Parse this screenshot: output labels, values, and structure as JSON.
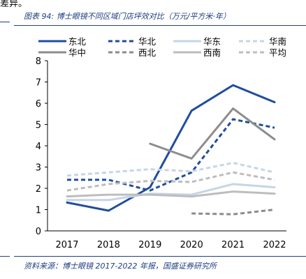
{
  "top_note": "差异。",
  "figure_title": "图表 94:  博士眼镜不同区域门店坪效对比（万元/平方米·年）",
  "source": "资料来源：博士眼镜 2017-2022 年报，国盛证券研究所",
  "chart_data": {
    "type": "line",
    "title": "图表 94:  博士眼镜不同区域门店坪效对比（万元/平方米·年）",
    "x": [
      "2017",
      "2018",
      "2019",
      "2020",
      "2021",
      "2022"
    ],
    "ylim": [
      0,
      8
    ],
    "yticks": [
      0,
      1,
      2,
      3,
      4,
      5,
      6,
      7,
      8
    ],
    "grid": false,
    "legend_position": "top",
    "series": [
      {
        "name": "东北",
        "color": "#1f4e9c",
        "style": "solid",
        "width": 3,
        "values": [
          1.33,
          0.95,
          2.05,
          5.65,
          6.85,
          6.05
        ]
      },
      {
        "name": "华北",
        "color": "#1f4e9c",
        "style": "dash",
        "width": 3,
        "values": [
          2.4,
          2.4,
          1.9,
          2.75,
          5.25,
          4.85
        ]
      },
      {
        "name": "华东",
        "color": "#c5d5e8",
        "style": "solid",
        "width": 3,
        "values": [
          1.45,
          1.45,
          1.75,
          1.7,
          2.2,
          2.05
        ]
      },
      {
        "name": "华南",
        "color": "#c5d5e8",
        "style": "dash",
        "width": 3,
        "values": [
          2.6,
          2.75,
          2.9,
          2.8,
          3.2,
          2.75
        ]
      },
      {
        "name": "华中",
        "color": "#8c8c8c",
        "style": "solid",
        "width": 3,
        "values": [
          null,
          null,
          4.1,
          3.4,
          5.75,
          4.3
        ]
      },
      {
        "name": "西北",
        "color": "#8c8c8c",
        "style": "dash",
        "width": 3,
        "values": [
          null,
          null,
          null,
          0.82,
          0.78,
          1.0
        ]
      },
      {
        "name": "西南",
        "color": "#bdbdbd",
        "style": "solid",
        "width": 3,
        "values": [
          1.62,
          1.7,
          1.7,
          1.62,
          1.85,
          1.75
        ]
      },
      {
        "name": "平均",
        "color": "#bdbdbd",
        "style": "dash",
        "width": 3,
        "values": [
          1.9,
          2.2,
          2.35,
          2.3,
          2.75,
          2.4
        ]
      }
    ]
  }
}
